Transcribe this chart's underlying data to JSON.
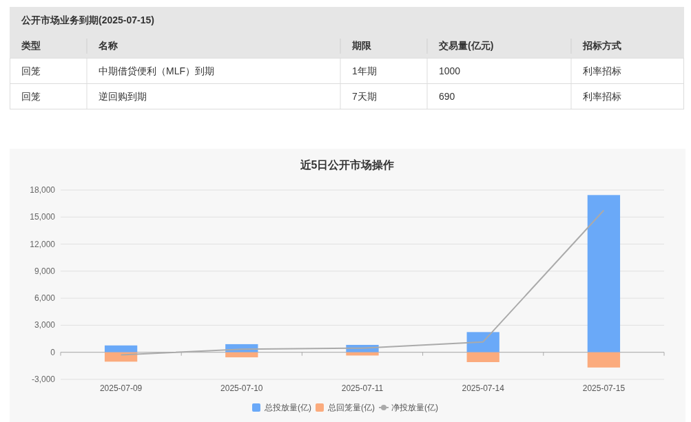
{
  "chart_data": [
    {
      "type": "other",
      "title": "公开市场业务到期(2025-07-15)",
      "categories": [
        "类型",
        "名称",
        "期限",
        "交易量(亿元)",
        "招标方式"
      ],
      "cell_labels": [
        [
          "回笼",
          "中期借贷便利（MLF）到期",
          "1年期",
          "1000",
          "利率招标"
        ],
        [
          "回笼",
          "逆回购到期",
          "7天期",
          "690",
          "利率招标"
        ]
      ]
    },
    {
      "type": "bar",
      "title": "近5日公开市场操作",
      "stacked": true,
      "categories": [
        "2025-07-09",
        "2025-07-10",
        "2025-07-11",
        "2025-07-14",
        "2025-07-15"
      ],
      "series": [
        {
          "name": "总投放量(亿)",
          "color": "#6aa9f8",
          "values": [
            760,
            900,
            820,
            2240,
            17440
          ]
        },
        {
          "name": "总回笼量(亿)",
          "color": "#fbab7d",
          "values": [
            -1040,
            -560,
            -360,
            -1090,
            -1690
          ]
        },
        {
          "name": "净投放量(亿)",
          "type": "line",
          "color": "#aaaaaa",
          "values": [
            -290,
            340,
            460,
            1150,
            15750
          ]
        }
      ],
      "ylim": [
        -3000,
        18000
      ],
      "yticks": [
        {
          "value": -3000,
          "label": "-3,000"
        },
        0,
        {
          "value": 3000,
          "label": "3,000"
        },
        {
          "value": 6000,
          "label": "6,000"
        },
        {
          "value": 9000,
          "label": "9,000"
        },
        {
          "value": 12000,
          "label": "12,000"
        },
        {
          "value": 15000,
          "label": "15,000"
        },
        {
          "value": 18000,
          "label": "18,000"
        }
      ],
      "grid": "y",
      "legend": "bottom"
    }
  ]
}
